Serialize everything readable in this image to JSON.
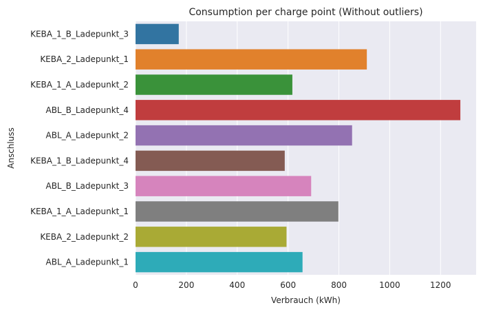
{
  "chart_data": {
    "type": "bar",
    "orientation": "horizontal",
    "title": "Consumption per charge point (Without outliers)",
    "xlabel": "Verbrauch (kWh)",
    "ylabel": "Anschluss",
    "xlim": [
      0,
      1340
    ],
    "xticks": [
      0,
      200,
      400,
      600,
      800,
      1000,
      1200
    ],
    "grid": true,
    "categories": [
      "KEBA_1_B_Ladepunkt_3",
      "KEBA_2_Ladepunkt_1",
      "KEBA_1_A_Ladepunkt_2",
      "ABL_B_Ladepunkt_4",
      "ABL_A_Ladepunkt_2",
      "KEBA_1_B_Ladepunkt_4",
      "ABL_B_Ladepunkt_3",
      "KEBA_1_A_Ladepunkt_1",
      "KEBA_2_Ladepunkt_2",
      "ABL_A_Ladepunkt_1"
    ],
    "values": [
      170,
      910,
      617,
      1278,
      852,
      587,
      691,
      798,
      594,
      657
    ],
    "colors": [
      "#3274a1",
      "#e1812c",
      "#3a923a",
      "#c03d3e",
      "#9372b2",
      "#845b53",
      "#d684bd",
      "#7f7f7f",
      "#a9aa35",
      "#2eabb8"
    ],
    "background": "#eaeaf2",
    "grid_color": "#ffffff"
  }
}
